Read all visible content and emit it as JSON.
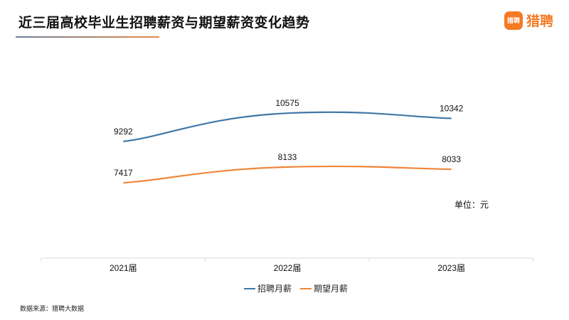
{
  "header": {
    "title": "近三届高校毕业生招聘薪资与期望薪资变化趋势",
    "logo_text": "猎聘",
    "logo_badge": "猎聘"
  },
  "unit_label": "单位：元",
  "source": "数据来源：猎聘大数据",
  "chart_data": {
    "type": "line",
    "title": "近三届高校毕业生招聘薪资与期望薪资变化趋势",
    "categories": [
      "2021届",
      "2022届",
      "2023届"
    ],
    "series": [
      {
        "name": "招聘月薪",
        "values": [
          9292,
          10575,
          10342
        ],
        "color": "#3f77a6"
      },
      {
        "name": "期望月薪",
        "values": [
          7417,
          8133,
          8033
        ],
        "color": "#f0863a"
      }
    ],
    "ylim": [
      4000,
      13000
    ],
    "grid": false,
    "smooth": true,
    "legend": "bottom",
    "xlabel": "",
    "ylabel": ""
  }
}
